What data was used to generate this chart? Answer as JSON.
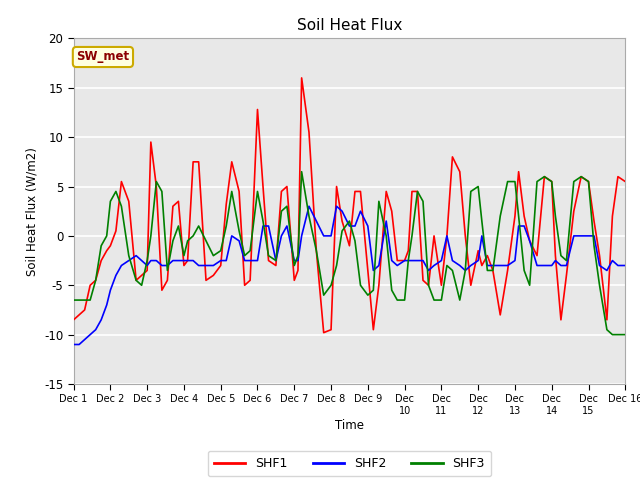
{
  "title": "Soil Heat Flux",
  "ylabel": "Soil Heat Flux (W/m2)",
  "xlabel": "Time",
  "ylim": [
    -15,
    20
  ],
  "xlim": [
    0,
    15
  ],
  "xtick_labels": [
    "Dec 1",
    "Dec 2",
    "Dec 3",
    "Dec 4",
    "Dec 5",
    "Dec 6",
    "Dec 7",
    "Dec 8",
    "Dec 9",
    "Dec 10",
    "Dec 11",
    "Dec 12",
    "Dec 13",
    "Dec 14",
    "Dec 15",
    "Dec 16"
  ],
  "xtick_positions": [
    0,
    1,
    2,
    3,
    4,
    5,
    6,
    7,
    8,
    9,
    10,
    11,
    12,
    13,
    14,
    15
  ],
  "ytick_positions": [
    -15,
    -10,
    -5,
    0,
    5,
    10,
    15,
    20
  ],
  "legend_label": "SW_met",
  "axes_facecolor": "#e8e8e8",
  "grid_color": "white",
  "shf1_color": "red",
  "shf2_color": "blue",
  "shf3_color": "green",
  "shf1_x": [
    0.0,
    0.15,
    0.3,
    0.45,
    0.6,
    0.75,
    0.9,
    1.0,
    1.15,
    1.3,
    1.5,
    1.7,
    1.85,
    2.0,
    2.1,
    2.25,
    2.4,
    2.55,
    2.7,
    2.85,
    3.0,
    3.1,
    3.25,
    3.4,
    3.6,
    3.8,
    4.0,
    4.15,
    4.3,
    4.5,
    4.65,
    4.8,
    5.0,
    5.15,
    5.3,
    5.5,
    5.65,
    5.8,
    6.0,
    6.1,
    6.2,
    6.4,
    6.6,
    6.8,
    7.0,
    7.15,
    7.3,
    7.5,
    7.65,
    7.8,
    8.0,
    8.15,
    8.3,
    8.5,
    8.65,
    8.8,
    9.0,
    9.1,
    9.2,
    9.35,
    9.5,
    9.65,
    9.8,
    10.0,
    10.15,
    10.3,
    10.5,
    10.65,
    10.8,
    11.0,
    11.1,
    11.25,
    11.4,
    11.6,
    11.8,
    12.0,
    12.1,
    12.25,
    12.4,
    12.6,
    12.8,
    13.0,
    13.1,
    13.25,
    13.4,
    13.6,
    13.8,
    14.0,
    14.15,
    14.3,
    14.5,
    14.65,
    14.8,
    15.0
  ],
  "shf1_y": [
    -8.5,
    -8.0,
    -7.5,
    -5.0,
    -4.5,
    -2.5,
    -1.5,
    -1.0,
    0.5,
    5.5,
    3.5,
    -4.5,
    -4.0,
    -3.5,
    9.5,
    5.0,
    -5.5,
    -4.5,
    3.0,
    3.5,
    -3.0,
    -2.5,
    7.5,
    7.5,
    -4.5,
    -4.0,
    -3.0,
    3.2,
    7.5,
    4.5,
    -5.0,
    -4.5,
    12.8,
    5.0,
    -2.5,
    -3.0,
    4.5,
    5.0,
    -4.5,
    -3.5,
    16.0,
    10.5,
    -1.5,
    -9.8,
    -9.5,
    5.0,
    1.5,
    -1.0,
    4.5,
    4.5,
    -3.5,
    -9.5,
    -5.0,
    4.5,
    2.5,
    -2.5,
    -2.5,
    -1.5,
    4.5,
    4.5,
    -4.5,
    -5.0,
    0.0,
    -5.0,
    0.0,
    8.0,
    6.5,
    0.0,
    -5.0,
    -1.5,
    -3.0,
    -2.0,
    -3.5,
    -8.0,
    -3.5,
    2.0,
    6.5,
    2.0,
    -0.5,
    -2.0,
    6.0,
    5.5,
    -2.0,
    -8.5,
    -4.0,
    2.5,
    6.0,
    5.5,
    1.5,
    -2.0,
    -8.5,
    2.0,
    6.0,
    5.5
  ],
  "shf2_x": [
    0.0,
    0.15,
    0.3,
    0.45,
    0.6,
    0.75,
    0.9,
    1.0,
    1.15,
    1.3,
    1.5,
    1.7,
    1.85,
    2.0,
    2.1,
    2.25,
    2.4,
    2.55,
    2.7,
    2.85,
    3.0,
    3.1,
    3.25,
    3.4,
    3.6,
    3.8,
    4.0,
    4.15,
    4.3,
    4.5,
    4.65,
    4.8,
    5.0,
    5.15,
    5.3,
    5.5,
    5.65,
    5.8,
    6.0,
    6.1,
    6.2,
    6.4,
    6.6,
    6.8,
    7.0,
    7.15,
    7.3,
    7.5,
    7.65,
    7.8,
    8.0,
    8.15,
    8.3,
    8.5,
    8.65,
    8.8,
    9.0,
    9.1,
    9.2,
    9.35,
    9.5,
    9.65,
    9.8,
    10.0,
    10.15,
    10.3,
    10.5,
    10.65,
    10.8,
    11.0,
    11.1,
    11.25,
    11.4,
    11.6,
    11.8,
    12.0,
    12.1,
    12.25,
    12.4,
    12.6,
    12.8,
    13.0,
    13.1,
    13.25,
    13.4,
    13.6,
    13.8,
    14.0,
    14.15,
    14.3,
    14.5,
    14.65,
    14.8,
    15.0
  ],
  "shf2_y": [
    -11.0,
    -11.0,
    -10.5,
    -10.0,
    -9.5,
    -8.5,
    -7.0,
    -5.5,
    -4.0,
    -3.0,
    -2.5,
    -2.0,
    -2.5,
    -3.0,
    -2.5,
    -2.5,
    -3.0,
    -3.0,
    -2.5,
    -2.5,
    -2.5,
    -2.5,
    -2.5,
    -3.0,
    -3.0,
    -3.0,
    -2.5,
    -2.5,
    0.0,
    -0.5,
    -2.5,
    -2.5,
    -2.5,
    1.0,
    1.0,
    -2.5,
    0.0,
    1.0,
    -2.5,
    -2.5,
    0.0,
    3.0,
    1.5,
    0.0,
    0.0,
    3.0,
    2.5,
    1.0,
    1.0,
    2.5,
    1.0,
    -3.5,
    -3.0,
    1.5,
    -2.5,
    -3.0,
    -2.5,
    -2.5,
    -2.5,
    -2.5,
    -2.5,
    -3.5,
    -3.0,
    -2.5,
    0.0,
    -2.5,
    -3.0,
    -3.5,
    -3.0,
    -2.5,
    0.0,
    -3.0,
    -3.0,
    -3.0,
    -3.0,
    -2.5,
    1.0,
    1.0,
    -0.5,
    -3.0,
    -3.0,
    -3.0,
    -2.5,
    -3.0,
    -3.0,
    0.0,
    0.0,
    0.0,
    0.0,
    -3.0,
    -3.5,
    -2.5,
    -3.0,
    -3.0
  ],
  "shf3_x": [
    0.0,
    0.15,
    0.3,
    0.45,
    0.6,
    0.75,
    0.9,
    1.0,
    1.15,
    1.3,
    1.5,
    1.7,
    1.85,
    2.0,
    2.1,
    2.25,
    2.4,
    2.55,
    2.7,
    2.85,
    3.0,
    3.1,
    3.25,
    3.4,
    3.6,
    3.8,
    4.0,
    4.15,
    4.3,
    4.5,
    4.65,
    4.8,
    5.0,
    5.15,
    5.3,
    5.5,
    5.65,
    5.8,
    6.0,
    6.1,
    6.2,
    6.4,
    6.6,
    6.8,
    7.0,
    7.15,
    7.3,
    7.5,
    7.65,
    7.8,
    8.0,
    8.15,
    8.3,
    8.5,
    8.65,
    8.8,
    9.0,
    9.1,
    9.2,
    9.35,
    9.5,
    9.65,
    9.8,
    10.0,
    10.15,
    10.3,
    10.5,
    10.65,
    10.8,
    11.0,
    11.1,
    11.25,
    11.4,
    11.6,
    11.8,
    12.0,
    12.1,
    12.25,
    12.4,
    12.6,
    12.8,
    13.0,
    13.1,
    13.25,
    13.4,
    13.6,
    13.8,
    14.0,
    14.15,
    14.3,
    14.5,
    14.65,
    14.8,
    15.0
  ],
  "shf3_y": [
    -6.5,
    -6.5,
    -6.5,
    -6.5,
    -4.5,
    -1.0,
    0.0,
    3.5,
    4.5,
    3.0,
    -2.0,
    -4.5,
    -5.0,
    -2.5,
    0.0,
    5.5,
    4.5,
    -3.5,
    -0.5,
    1.0,
    -2.0,
    -0.5,
    0.0,
    1.0,
    -0.5,
    -2.0,
    -1.5,
    1.0,
    4.5,
    0.5,
    -2.0,
    -1.5,
    4.5,
    1.5,
    -2.0,
    -2.5,
    2.5,
    3.0,
    -3.0,
    -2.0,
    6.5,
    2.0,
    -1.5,
    -6.0,
    -5.0,
    -3.0,
    0.5,
    1.5,
    -0.5,
    -5.0,
    -6.0,
    -5.5,
    3.5,
    0.0,
    -5.5,
    -6.5,
    -6.5,
    -2.5,
    0.0,
    4.5,
    3.5,
    -5.0,
    -6.5,
    -6.5,
    -3.0,
    -3.5,
    -6.5,
    -3.5,
    4.5,
    5.0,
    1.5,
    -3.5,
    -3.5,
    2.0,
    5.5,
    5.5,
    2.0,
    -3.5,
    -5.0,
    5.5,
    6.0,
    5.5,
    2.0,
    -2.0,
    -2.5,
    5.5,
    6.0,
    5.5,
    -1.0,
    -5.0,
    -9.5,
    -10.0,
    -10.0,
    -10.0
  ]
}
